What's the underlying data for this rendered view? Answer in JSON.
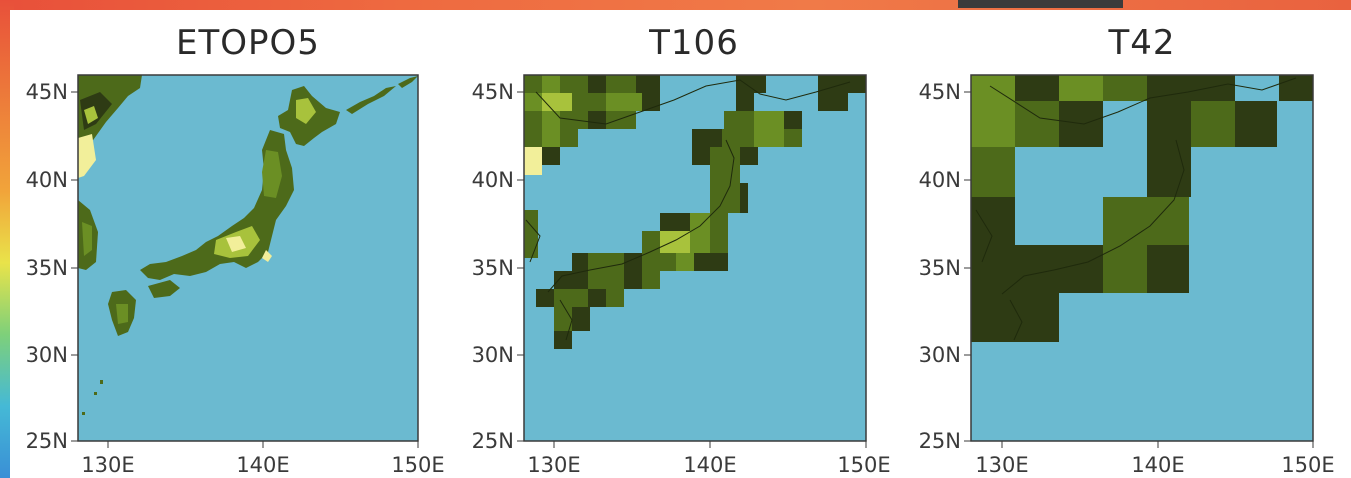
{
  "panels": [
    {
      "title": "ETOPO5",
      "y_ticks": [
        "45N",
        "40N",
        "35N",
        "30N",
        "25N"
      ],
      "x_ticks": [
        "130E",
        "140E",
        "150E"
      ]
    },
    {
      "title": "T106",
      "y_ticks": [
        "45N",
        "40N",
        "35N",
        "30N",
        "25N"
      ],
      "x_ticks": [
        "130E",
        "140E",
        "150E"
      ]
    },
    {
      "title": "T42",
      "y_ticks": [
        "45N",
        "40N",
        "35N",
        "30N",
        "25N"
      ],
      "x_ticks": [
        "130E",
        "140E",
        "150E"
      ]
    }
  ],
  "colors": {
    "ocean": "#6bbad0",
    "land_dark": "#2e3b14",
    "land_mid": "#4d6a1a",
    "land_light": "#6b8f24",
    "land_high": "#a8c23c",
    "land_peak": "#f2ef9a"
  }
}
